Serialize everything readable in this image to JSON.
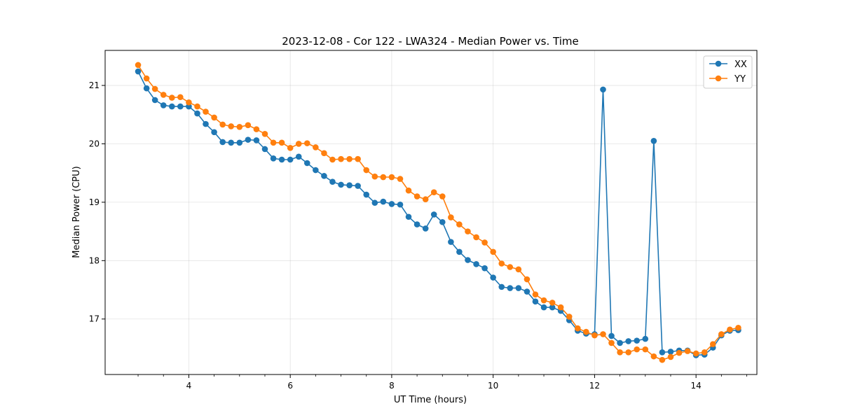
{
  "chart_data": {
    "type": "line",
    "title": "2023-12-08 - Cor 122 - LWA324 - Median Power vs. Time",
    "xlabel": "UT Time (hours)",
    "ylabel": "Median Power (CPU)",
    "xlim": [
      2.35,
      15.2
    ],
    "ylim": [
      16.05,
      21.6
    ],
    "xticks": [
      4,
      6,
      8,
      10,
      12,
      14
    ],
    "yticks": [
      17,
      18,
      19,
      20,
      21
    ],
    "grid": true,
    "legend_position": "top-right",
    "x": [
      3.0,
      3.167,
      3.333,
      3.5,
      3.667,
      3.833,
      4.0,
      4.167,
      4.333,
      4.5,
      4.667,
      4.833,
      5.0,
      5.167,
      5.333,
      5.5,
      5.667,
      5.833,
      6.0,
      6.167,
      6.333,
      6.5,
      6.667,
      6.833,
      7.0,
      7.167,
      7.333,
      7.5,
      7.667,
      7.833,
      8.0,
      8.167,
      8.333,
      8.5,
      8.667,
      8.833,
      9.0,
      9.167,
      9.333,
      9.5,
      9.667,
      9.833,
      10.0,
      10.167,
      10.333,
      10.5,
      10.667,
      10.833,
      11.0,
      11.167,
      11.333,
      11.5,
      11.667,
      11.833,
      12.0,
      12.167,
      12.333,
      12.5,
      12.667,
      12.833,
      13.0,
      13.167,
      13.333,
      13.5,
      13.667,
      13.833,
      14.0,
      14.167,
      14.333,
      14.5,
      14.667,
      14.833
    ],
    "series": [
      {
        "name": "XX",
        "color": "#1f77b4",
        "values": [
          21.24,
          20.95,
          20.75,
          20.66,
          20.64,
          20.64,
          20.64,
          20.52,
          20.34,
          20.2,
          20.03,
          20.02,
          20.02,
          20.07,
          20.06,
          19.91,
          19.75,
          19.73,
          19.73,
          19.78,
          19.67,
          19.55,
          19.45,
          19.35,
          19.3,
          19.29,
          19.28,
          19.13,
          18.99,
          19.01,
          18.97,
          18.96,
          18.75,
          18.62,
          18.55,
          18.79,
          18.66,
          18.32,
          18.15,
          18.01,
          17.94,
          17.87,
          17.71,
          17.55,
          17.53,
          17.53,
          17.47,
          17.3,
          17.2,
          17.2,
          17.14,
          16.98,
          16.8,
          16.75,
          16.74,
          20.93,
          16.71,
          16.59,
          16.62,
          16.63,
          16.66,
          20.05,
          16.43,
          16.44,
          16.46,
          16.46,
          16.38,
          16.39,
          16.51,
          16.72,
          16.8,
          16.81
        ]
      },
      {
        "name": "YY",
        "color": "#ff7f0e",
        "values": [
          21.35,
          21.12,
          20.94,
          20.84,
          20.79,
          20.8,
          20.71,
          20.64,
          20.55,
          20.45,
          20.33,
          20.3,
          20.29,
          20.32,
          20.25,
          20.17,
          20.02,
          20.02,
          19.93,
          20.0,
          20.01,
          19.94,
          19.84,
          19.73,
          19.74,
          19.74,
          19.74,
          19.55,
          19.44,
          19.43,
          19.43,
          19.4,
          19.2,
          19.1,
          19.05,
          19.17,
          19.1,
          18.74,
          18.62,
          18.5,
          18.4,
          18.31,
          18.15,
          17.95,
          17.89,
          17.85,
          17.68,
          17.42,
          17.32,
          17.28,
          17.2,
          17.04,
          16.84,
          16.78,
          16.72,
          16.74,
          16.59,
          16.43,
          16.43,
          16.48,
          16.48,
          16.36,
          16.3,
          16.35,
          16.42,
          16.45,
          16.41,
          16.43,
          16.57,
          16.74,
          16.82,
          16.85
        ]
      }
    ]
  }
}
